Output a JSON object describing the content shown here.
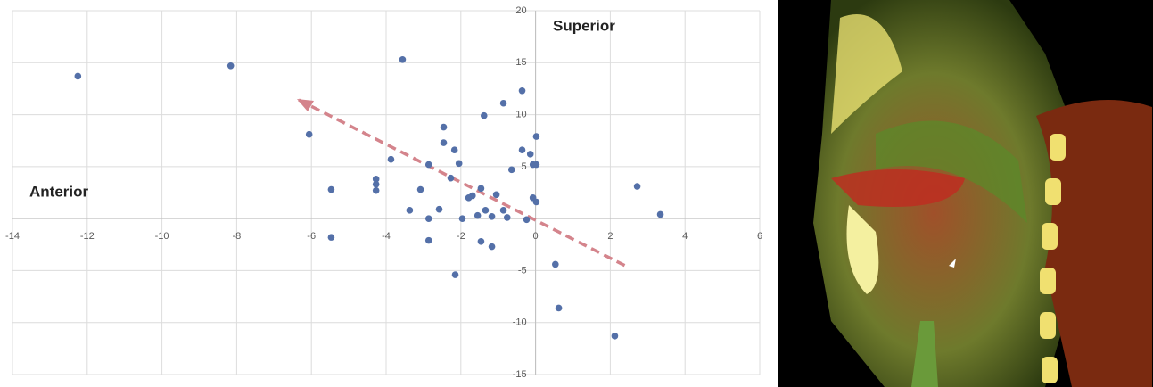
{
  "chart_data": {
    "type": "scatter",
    "color": "#5470a8",
    "grid": true,
    "annotations": [
      "Superior",
      "Anterior"
    ],
    "xlim": [
      -14,
      6
    ],
    "xticks": [
      -14,
      -12,
      -10,
      -8,
      -6,
      -4,
      -2,
      0,
      2,
      4,
      6
    ],
    "ylim": [
      -15,
      20
    ],
    "yticks": [
      -15,
      -10,
      -5,
      5,
      10,
      15,
      20
    ],
    "x": [
      -12.25,
      -8.16,
      -3.56,
      -6.06,
      -5.47,
      -5.47,
      -4.27,
      -4.27,
      -4.27,
      -3.87,
      -3.37,
      -3.08,
      -2.86,
      -2.86,
      -2.86,
      -2.58,
      -2.46,
      -2.46,
      -2.27,
      -2.17,
      -2.05,
      -2.15,
      -1.96,
      -1.79,
      -1.69,
      -1.55,
      -1.46,
      -1.46,
      -1.38,
      -1.34,
      -1.17,
      -1.17,
      -1.05,
      -0.86,
      -0.86,
      -0.76,
      -0.64,
      -0.36,
      -0.36,
      -0.24,
      -0.14,
      -0.07,
      0.02,
      0.02,
      -0.07,
      0.02,
      0.53,
      0.62,
      2.12,
      2.72,
      3.34
    ],
    "values": [
      13.7,
      14.7,
      15.3,
      8.1,
      2.8,
      -1.8,
      3.8,
      3.3,
      2.7,
      5.7,
      0.8,
      2.8,
      5.2,
      0,
      -2.1,
      0.9,
      8.8,
      7.3,
      3.9,
      6.6,
      5.3,
      -5.4,
      0,
      2.0,
      2.2,
      0.3,
      2.9,
      -2.2,
      9.9,
      0.8,
      0.2,
      -2.7,
      2.3,
      11.1,
      0.8,
      0.1,
      4.7,
      12.3,
      6.6,
      -0.1,
      6.2,
      5.2,
      5.2,
      7.9,
      2.0,
      1.6,
      -4.4,
      -8.6,
      -11.3,
      3.1,
      0.4
    ]
  }
}
